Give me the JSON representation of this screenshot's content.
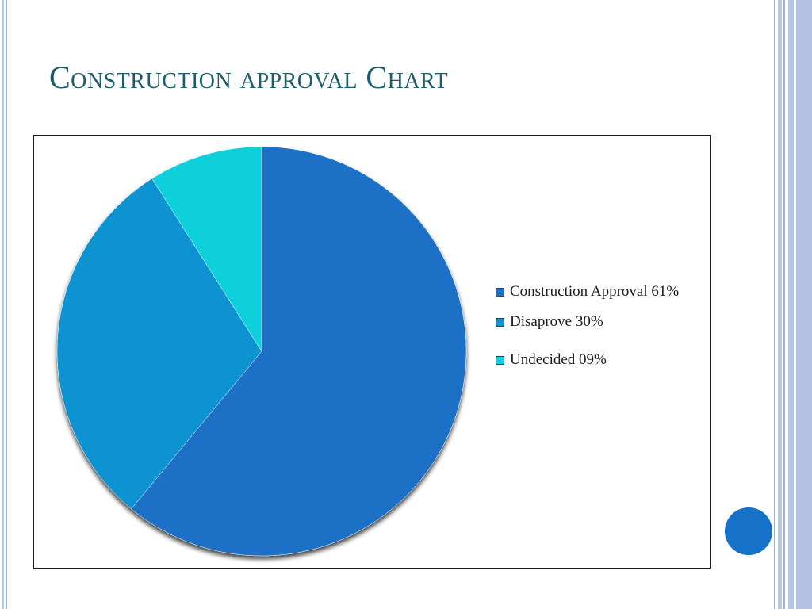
{
  "slide": {
    "title": "Construction approval Chart"
  },
  "chart_data": {
    "type": "pie",
    "categories": [
      "Construction Approval 61%",
      "Disaprove 30%",
      "Undecided 09%"
    ],
    "values": [
      61,
      30,
      9
    ],
    "colors": [
      "#1d6fc5",
      "#0d93d1",
      "#0fd0db"
    ],
    "legend_position": "right",
    "start": "top, clockwise"
  },
  "colors": {
    "title": "#1d5d6a",
    "frame": "#b8c7e6",
    "accent_dot": "#1672c9"
  }
}
